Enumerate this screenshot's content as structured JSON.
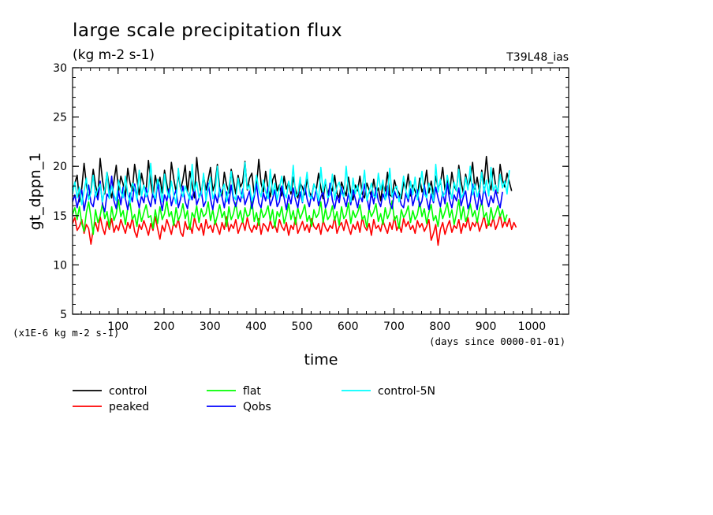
{
  "chart_data": {
    "type": "line",
    "title": "large scale precipitation flux",
    "subtitle": "(kg m-2 s-1)",
    "tag": "T39L48_ias",
    "ylabel": "gt_dppn_1",
    "xlabel": "time",
    "y_unit_note": "(x1E-6 kg m-2 s-1)",
    "x_unit_note": "(days since 0000-01-01)",
    "xlim": [
      1,
      1080
    ],
    "ylim": [
      5,
      30
    ],
    "x_ticks": [
      100,
      200,
      300,
      400,
      500,
      600,
      700,
      800,
      900,
      1000
    ],
    "y_ticks": [
      5,
      10,
      15,
      20,
      25,
      30
    ],
    "grid": false,
    "legend_placement": "bottom",
    "x_step_days": 5,
    "series": [
      {
        "name": "control",
        "color": "#000000",
        "values": [
          17.6,
          18.3,
          19.1,
          16.4,
          17.8,
          20.3,
          18.2,
          16.9,
          17.5,
          19.7,
          18.1,
          17.0,
          20.8,
          18.6,
          17.2,
          19.4,
          17.9,
          16.8,
          18.5,
          20.1,
          17.4,
          19.0,
          18.2,
          16.9,
          19.8,
          18.3,
          17.5,
          20.2,
          18.7,
          17.1,
          19.3,
          18.0,
          17.6,
          20.6,
          18.4,
          16.9,
          19.1,
          17.8,
          18.9,
          17.3,
          19.6,
          18.2,
          17.0,
          20.4,
          18.8,
          17.4,
          19.2,
          17.7,
          18.6,
          20.1,
          17.3,
          19.5,
          18.1,
          16.8,
          20.9,
          18.5,
          17.2,
          19.0,
          17.6,
          18.7,
          19.9,
          17.5,
          18.3,
          20.2,
          17.8,
          16.9,
          19.4,
          18.1,
          17.3,
          19.7,
          18.6,
          17.2,
          19.1,
          17.9,
          18.4,
          20.5,
          17.6,
          18.8,
          19.3,
          17.1,
          18.0,
          20.7,
          18.3,
          17.4,
          19.5,
          17.8,
          16.9,
          18.6,
          19.2,
          17.5,
          18.1,
          17.0,
          19.0,
          17.7,
          18.4,
          17.2,
          18.9,
          17.6,
          16.8,
          18.3,
          17.9,
          17.1,
          18.7,
          17.4,
          16.9,
          18.2,
          17.6,
          19.3,
          17.8,
          16.7,
          18.5,
          17.2,
          18.0,
          17.5,
          19.1,
          17.3,
          16.8,
          18.4,
          17.7,
          17.0,
          18.9,
          17.4,
          16.6,
          18.1,
          17.5,
          19.0,
          17.2,
          16.8,
          18.3,
          17.6,
          16.9,
          18.7,
          17.3,
          17.8,
          16.5,
          18.2,
          17.5,
          19.4,
          17.1,
          16.9,
          18.6,
          17.7,
          17.3,
          16.7,
          18.4,
          17.6,
          19.2,
          17.0,
          18.1,
          17.5,
          16.8,
          18.8,
          17.4,
          18.0,
          19.6,
          17.3,
          18.5,
          17.1,
          19.0,
          17.8,
          18.3,
          19.9,
          17.6,
          18.7,
          17.2,
          19.4,
          18.0,
          17.5,
          20.1,
          18.4,
          17.3,
          19.2,
          17.9,
          18.6,
          20.4,
          17.7,
          18.9,
          17.4,
          19.6,
          18.2,
          21.0,
          18.5,
          17.6,
          19.8,
          18.1,
          17.3,
          20.2,
          18.6,
          17.9,
          19.3,
          18.4,
          17.5
        ]
      },
      {
        "name": "peaked",
        "color": "#ff0000",
        "values": [
          14.2,
          14.8,
          13.5,
          13.9,
          14.6,
          13.2,
          14.1,
          13.7,
          12.1,
          13.6,
          14.3,
          13.4,
          14.9,
          13.8,
          13.1,
          14.4,
          13.6,
          14.7,
          13.3,
          14.0,
          13.5,
          14.6,
          13.9,
          13.2,
          14.3,
          13.7,
          14.8,
          13.4,
          12.8,
          14.1,
          13.6,
          14.5,
          13.8,
          13.0,
          14.2,
          13.5,
          14.9,
          13.7,
          12.6,
          14.0,
          13.4,
          14.6,
          13.9,
          13.1,
          14.3,
          13.8,
          14.7,
          13.3,
          12.9,
          14.4,
          13.6,
          14.1,
          13.2,
          14.8,
          13.9,
          13.5,
          14.2,
          13.0,
          14.6,
          13.7,
          14.0,
          13.3,
          14.5,
          13.8,
          13.1,
          14.3,
          13.6,
          14.9,
          13.4,
          14.1,
          13.7,
          14.6,
          13.2,
          13.9,
          14.4,
          13.5,
          14.8,
          13.8,
          13.3,
          14.0,
          13.6,
          14.7,
          13.1,
          14.2,
          13.9,
          13.4,
          14.5,
          13.7,
          14.1,
          13.3,
          14.6,
          13.9,
          13.5,
          14.3,
          13.0,
          14.0,
          13.6,
          14.8,
          13.2,
          13.8,
          14.4,
          13.5,
          14.1,
          13.3,
          14.7,
          13.9,
          13.6,
          14.2,
          13.1,
          14.5,
          13.8,
          13.4,
          14.0,
          13.7,
          14.9,
          13.2,
          13.9,
          14.3,
          13.5,
          14.6,
          13.8,
          13.1,
          14.1,
          13.6,
          14.4,
          13.3,
          14.8,
          13.9,
          13.5,
          14.2,
          13.0,
          14.6,
          13.7,
          14.0,
          13.4,
          14.5,
          13.8,
          13.2,
          14.3,
          13.6,
          14.9,
          13.5,
          14.1,
          13.3,
          14.7,
          13.9,
          14.4,
          13.6,
          14.0,
          13.2,
          14.5,
          13.8,
          14.2,
          13.4,
          13.9,
          14.6,
          12.5,
          13.2,
          14.1,
          12.0,
          13.6,
          14.3,
          13.1,
          13.9,
          14.5,
          13.3,
          14.0,
          13.7,
          14.6,
          13.2,
          14.2,
          13.8,
          14.8,
          13.5,
          14.3,
          13.9,
          14.6,
          13.4,
          14.1,
          15.0,
          13.7,
          14.4,
          13.9,
          14.8,
          13.6,
          14.2,
          15.1,
          13.8,
          14.5,
          13.9,
          14.7,
          13.6,
          14.3,
          13.8
        ]
      },
      {
        "name": "flat",
        "color": "#00ff00",
        "values": [
          15.1,
          15.8,
          14.6,
          15.9,
          14.2,
          13.4,
          15.3,
          16.4,
          14.8,
          13.1,
          15.6,
          14.3,
          15.0,
          16.2,
          14.7,
          15.4,
          13.8,
          15.9,
          14.5,
          15.2,
          16.6,
          14.9,
          15.5,
          14.1,
          15.8,
          16.3,
          14.6,
          15.1,
          13.9,
          15.7,
          14.4,
          15.3,
          16.1,
          14.8,
          15.0,
          13.7,
          15.6,
          14.2,
          15.9,
          14.6,
          15.2,
          16.5,
          14.9,
          15.4,
          14.0,
          15.8,
          14.5,
          15.1,
          16.2,
          14.7,
          15.5,
          13.6,
          15.3,
          14.8,
          16.0,
          14.3,
          15.7,
          14.9,
          15.2,
          16.4,
          14.5,
          15.6,
          14.1,
          15.0,
          16.1,
          14.8,
          15.4,
          13.9,
          15.9,
          14.6,
          15.2,
          16.3,
          14.7,
          15.5,
          14.3,
          15.8,
          14.9,
          15.1,
          16.6,
          14.4,
          15.3,
          14.0,
          15.7,
          14.8,
          15.2,
          16.0,
          14.5,
          15.6,
          13.8,
          15.4,
          14.9,
          15.9,
          14.2,
          15.1,
          16.2,
          14.6,
          15.5,
          14.1,
          15.8,
          14.7,
          15.3,
          16.1,
          14.4,
          15.0,
          13.9,
          15.6,
          14.8,
          15.2,
          16.4,
          14.3,
          15.7,
          14.6,
          15.0,
          16.0,
          14.5,
          15.4,
          14.0,
          15.9,
          14.7,
          15.1,
          16.3,
          14.2,
          15.5,
          14.8,
          15.3,
          16.1,
          14.6,
          15.0,
          13.8,
          15.7,
          14.9,
          15.4,
          16.2,
          14.4,
          15.2,
          14.1,
          15.8,
          14.7,
          15.3,
          16.5,
          14.5,
          15.0,
          13.7,
          15.6,
          14.8,
          15.2,
          16.0,
          14.3,
          15.5,
          14.6,
          15.1,
          16.4,
          14.9,
          15.7,
          14.2,
          15.3,
          16.1,
          14.5,
          15.0,
          13.9,
          15.8,
          14.7,
          15.4,
          16.3,
          14.8,
          15.6,
          14.1,
          15.2,
          16.6,
          14.6,
          15.9,
          14.4,
          15.1,
          16.2,
          14.9,
          15.5,
          14.3,
          15.7,
          16.4,
          14.8,
          15.3,
          14.0,
          15.8,
          14.6,
          15.2,
          16.0,
          14.9,
          15.6,
          14.4,
          15.1
        ]
      },
      {
        "name": "Qobs",
        "color": "#0000ff",
        "values": [
          16.4,
          17.1,
          15.8,
          16.9,
          17.6,
          15.5,
          16.8,
          18.1,
          16.3,
          15.9,
          17.4,
          16.6,
          18.5,
          16.2,
          15.4,
          17.2,
          16.8,
          19.0,
          16.5,
          15.7,
          17.5,
          16.1,
          17.9,
          16.7,
          15.6,
          17.3,
          16.4,
          18.2,
          16.9,
          15.8,
          17.0,
          16.3,
          17.8,
          16.6,
          15.9,
          17.4,
          16.2,
          18.4,
          16.8,
          15.5,
          17.1,
          16.5,
          17.7,
          16.0,
          16.9,
          17.6,
          15.8,
          16.7,
          18.0,
          16.4,
          15.7,
          17.3,
          16.6,
          17.9,
          16.1,
          16.8,
          17.5,
          15.9,
          16.5,
          18.3,
          16.7,
          15.6,
          17.2,
          16.3,
          17.8,
          16.9,
          15.8,
          17.4,
          16.2,
          18.1,
          16.6,
          15.9,
          17.0,
          16.4,
          17.7,
          16.1,
          16.8,
          17.5,
          15.7,
          16.9,
          18.2,
          16.3,
          15.8,
          17.3,
          16.5,
          17.9,
          16.0,
          16.7,
          17.6,
          15.9,
          16.4,
          18.0,
          16.8,
          15.6,
          17.1,
          16.2,
          17.8,
          16.6,
          15.8,
          17.4,
          16.3,
          18.1,
          16.7,
          15.9,
          17.2,
          16.5,
          17.7,
          16.0,
          16.9,
          17.5,
          15.8,
          16.4,
          18.3,
          16.6,
          15.7,
          17.0,
          16.3,
          17.9,
          16.8,
          15.9,
          17.3,
          16.1,
          17.6,
          16.7,
          15.8,
          17.1,
          16.4,
          18.2,
          16.9,
          15.6,
          17.4,
          16.2,
          17.8,
          16.5,
          15.9,
          17.2,
          16.6,
          18.0,
          16.3,
          15.7,
          17.5,
          16.8,
          17.0,
          16.1,
          15.8,
          17.3,
          16.4,
          17.7,
          16.0,
          16.9,
          17.6,
          15.9,
          16.5,
          18.1,
          16.7,
          15.6,
          17.2,
          16.3,
          17.9,
          16.8,
          15.9,
          17.4,
          16.2,
          18.3,
          16.6,
          15.8,
          17.1,
          16.5,
          17.8,
          16.0,
          16.9,
          17.5,
          15.7,
          16.4,
          18.2,
          16.7,
          15.6,
          17.3,
          16.1,
          17.9,
          16.8,
          15.9,
          17.0,
          16.3,
          17.6,
          16.6,
          15.8,
          17.4
        ]
      },
      {
        "name": "control-5N",
        "color": "#00ffff",
        "values": [
          17.2,
          18.4,
          16.8,
          17.9,
          16.1,
          17.5,
          18.8,
          16.6,
          17.3,
          19.1,
          16.9,
          17.7,
          18.2,
          16.4,
          17.6,
          19.4,
          16.7,
          18.0,
          17.1,
          16.5,
          18.6,
          17.4,
          16.8,
          19.0,
          17.2,
          16.3,
          18.3,
          17.8,
          16.6,
          19.6,
          17.0,
          18.1,
          16.9,
          17.5,
          20.3,
          17.3,
          16.7,
          18.7,
          17.9,
          16.4,
          19.2,
          17.6,
          16.8,
          18.5,
          17.1,
          16.2,
          19.8,
          17.7,
          16.9,
          18.0,
          17.3,
          16.6,
          20.2,
          17.5,
          18.4,
          16.8,
          17.2,
          19.3,
          16.5,
          17.8,
          18.9,
          16.7,
          17.4,
          20.0,
          16.9,
          17.6,
          18.2,
          16.4,
          17.9,
          19.5,
          17.0,
          16.6,
          18.8,
          17.3,
          16.8,
          20.4,
          17.7,
          18.1,
          16.5,
          17.2,
          19.1,
          17.6,
          16.9,
          18.6,
          17.4,
          16.7,
          19.7,
          17.1,
          18.3,
          16.6,
          17.8,
          19.0,
          17.3,
          16.8,
          18.5,
          17.5,
          20.1,
          16.9,
          17.2,
          18.9,
          16.4,
          17.7,
          19.4,
          17.0,
          16.7,
          18.2,
          17.6,
          16.5,
          19.9,
          17.4,
          18.7,
          16.8,
          17.1,
          19.2,
          16.6,
          17.9,
          18.4,
          17.3,
          16.9,
          20.0,
          17.5,
          16.4,
          18.8,
          17.2,
          18.1,
          16.7,
          17.8,
          19.6,
          16.5,
          17.4,
          18.3,
          17.0,
          16.8,
          19.3,
          17.6,
          18.6,
          16.6,
          17.2,
          19.8,
          16.9,
          17.7,
          18.0,
          16.4,
          17.3,
          19.0,
          17.5,
          16.7,
          18.5,
          17.1,
          18.9,
          16.6,
          17.9,
          19.5,
          17.2,
          16.8,
          18.3,
          17.6,
          16.5,
          20.2,
          17.4,
          18.7,
          16.9,
          17.3,
          19.1,
          17.8,
          16.7,
          18.4,
          17.5,
          19.7,
          16.8,
          17.2,
          18.9,
          17.6,
          20.0,
          17.1,
          18.2,
          16.9,
          17.7,
          19.4,
          17.3,
          18.6,
          17.0,
          19.9,
          17.5,
          18.1,
          17.4,
          19.2,
          17.8,
          18.5,
          17.2,
          19.6
        ]
      }
    ]
  }
}
